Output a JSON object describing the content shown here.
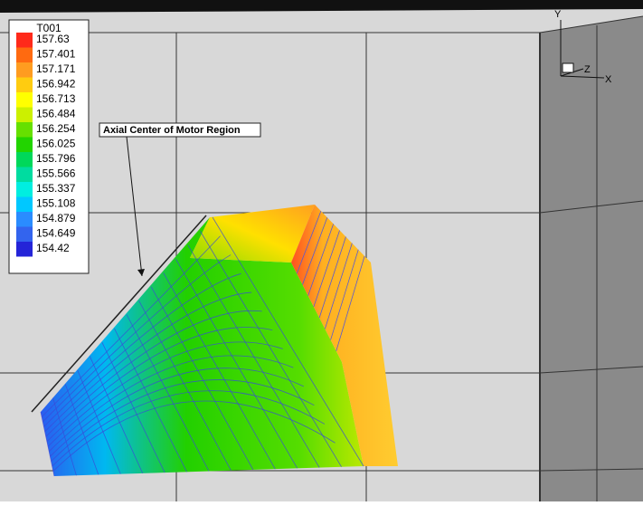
{
  "legend": {
    "title": "T001",
    "levels": [
      {
        "label": "157.63",
        "color": "#ff2a1a"
      },
      {
        "label": "157.401",
        "color": "#ff6a10"
      },
      {
        "label": "157.171",
        "color": "#ff9c20"
      },
      {
        "label": "156.942",
        "color": "#ffcc10"
      },
      {
        "label": "156.713",
        "color": "#ffff00"
      },
      {
        "label": "156.484",
        "color": "#ccf000"
      },
      {
        "label": "156.254",
        "color": "#66e000"
      },
      {
        "label": "156.025",
        "color": "#22d400"
      },
      {
        "label": "155.796",
        "color": "#00d85a"
      },
      {
        "label": "155.566",
        "color": "#00dca0"
      },
      {
        "label": "155.337",
        "color": "#00eee0"
      },
      {
        "label": "155.108",
        "color": "#00c8ff"
      },
      {
        "label": "154.879",
        "color": "#2a8cff"
      },
      {
        "label": "154.649",
        "color": "#3364ee"
      },
      {
        "label": "154.42",
        "color": "#2424d8"
      }
    ]
  },
  "annotation": "Axial Center of Motor Region",
  "axes": {
    "y": "Y",
    "z": "Z",
    "x": "X"
  }
}
